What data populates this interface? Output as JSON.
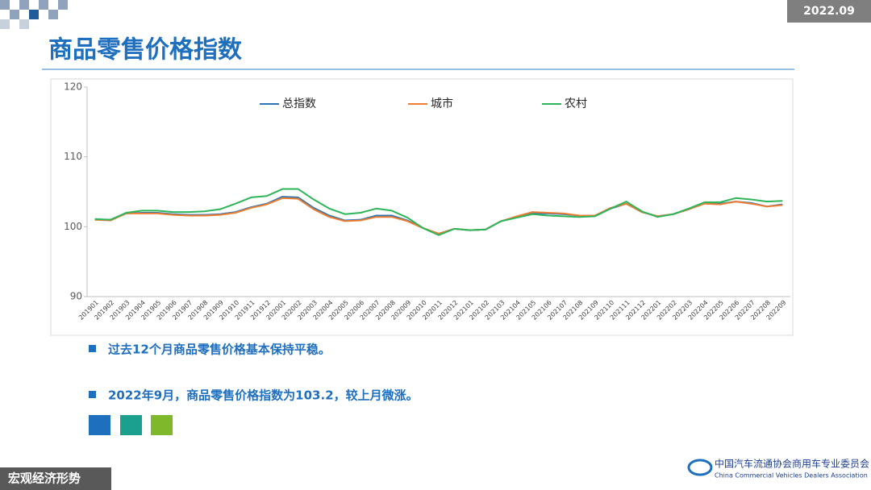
{
  "header": {
    "date": "2022.09",
    "title": "商品零售价格指数"
  },
  "chart_data": {
    "type": "line",
    "categories": [
      "201901",
      "201902",
      "201903",
      "201904",
      "201905",
      "201906",
      "201907",
      "201908",
      "201909",
      "201910",
      "201911",
      "201912",
      "202001",
      "202002",
      "202003",
      "202004",
      "202005",
      "202006",
      "202007",
      "202008",
      "202009",
      "202010",
      "202011",
      "202012",
      "202101",
      "202102",
      "202103",
      "202104",
      "202105",
      "202106",
      "202107",
      "202108",
      "202109",
      "202110",
      "202111",
      "202112",
      "202201",
      "202202",
      "202203",
      "202204",
      "202205",
      "202206",
      "202207",
      "202208",
      "202209"
    ],
    "series": [
      {
        "name": "总指数",
        "color": "#2e75b6",
        "values": [
          101.0,
          101.0,
          101.9,
          102.0,
          102.0,
          101.8,
          101.7,
          101.7,
          101.8,
          102.1,
          102.8,
          103.3,
          104.3,
          104.2,
          102.7,
          101.6,
          100.9,
          101.0,
          101.6,
          101.6,
          100.9,
          99.8,
          99.0,
          99.7,
          99.5,
          99.6,
          100.8,
          101.4,
          101.9,
          101.9,
          101.8,
          101.6,
          101.6,
          102.6,
          103.3,
          102.1,
          101.5,
          101.8,
          102.5,
          103.4,
          103.3,
          103.6,
          103.4,
          102.9,
          103.2
        ]
      },
      {
        "name": "城市",
        "color": "#ed7d31",
        "values": [
          101.0,
          100.9,
          101.9,
          101.9,
          101.9,
          101.7,
          101.6,
          101.6,
          101.7,
          102.0,
          102.7,
          103.2,
          104.1,
          104.0,
          102.5,
          101.4,
          100.8,
          100.9,
          101.4,
          101.4,
          100.8,
          99.8,
          99.0,
          99.7,
          99.5,
          99.6,
          100.8,
          101.5,
          102.1,
          102.0,
          101.9,
          101.6,
          101.6,
          102.7,
          103.3,
          102.1,
          101.5,
          101.8,
          102.5,
          103.3,
          103.2,
          103.6,
          103.3,
          102.9,
          103.1
        ]
      },
      {
        "name": "农村",
        "color": "#2eb55a",
        "values": [
          101.1,
          101.0,
          102.0,
          102.3,
          102.3,
          102.1,
          102.1,
          102.2,
          102.5,
          103.3,
          104.2,
          104.4,
          105.4,
          105.4,
          103.9,
          102.6,
          101.8,
          102.0,
          102.6,
          102.3,
          101.3,
          99.8,
          98.8,
          99.7,
          99.5,
          99.6,
          100.8,
          101.3,
          101.8,
          101.6,
          101.5,
          101.4,
          101.5,
          102.6,
          103.6,
          102.2,
          101.4,
          101.8,
          102.6,
          103.5,
          103.5,
          104.1,
          103.9,
          103.6,
          103.7
        ]
      }
    ],
    "ylim": [
      90,
      120
    ],
    "yticks": [
      90,
      100,
      110,
      120
    ],
    "grid": false,
    "legend": "top"
  },
  "bullets": [
    "过去12个月商品零售价格基本保持平稳。",
    "2022年9月，商品零售价格指数为103.2，较上月微涨。"
  ],
  "footer": {
    "section": "宏观经济形势",
    "org": "中国汽车流通协会商用车专业委员会",
    "org_en": "China Commercial Vehicles Dealers Association"
  }
}
